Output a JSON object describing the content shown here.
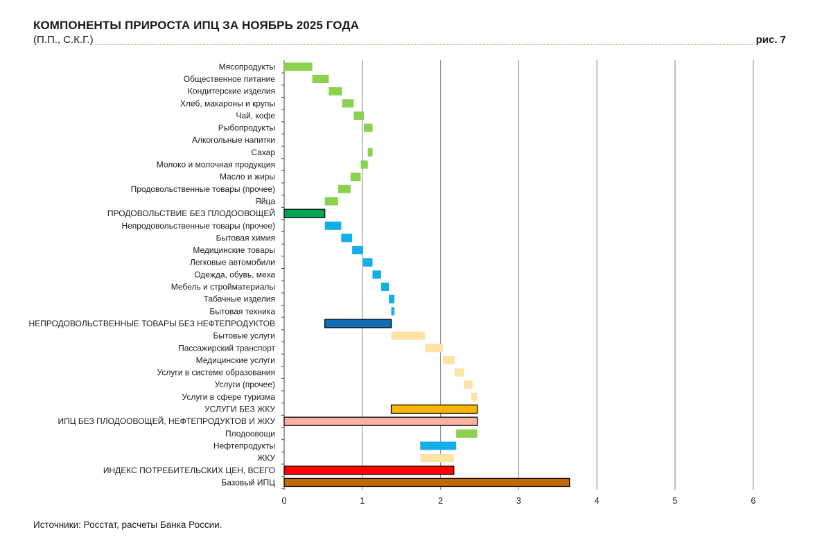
{
  "header": {
    "title": "КОМПОНЕНТЫ ПРИРОСТА ИПЦ ЗА НОЯБРЬ 2025 ГОДА",
    "subtitle": "(П.П., С.К.Г.)",
    "figure_label": "рис. 7"
  },
  "footer": {
    "source": "Источники: Росстат, расчеты Банка России."
  },
  "colors": {
    "food": "#8dd04f",
    "food_total": "#00a651",
    "nonfood": "#12aee8",
    "nonfood_total": "#0f6cb5",
    "services": "#fde3a6",
    "services_total": "#f7b500",
    "core_ex": "#f9b1a3",
    "cpi_total": "#ff0000",
    "base_cpi": "#c06a0a",
    "grid": "#808080"
  },
  "chart_data": {
    "type": "waterfall",
    "title": "КОМПОНЕНТЫ ПРИРОСТА ИПЦ ЗА НОЯБРЬ 2025 ГОДА",
    "units": "п.п., с.к.г.",
    "xlim": [
      0,
      6
    ],
    "xticks": [
      0,
      1,
      2,
      3,
      4,
      5,
      6
    ],
    "grid": true,
    "bars": [
      {
        "label": "Мясопродукты",
        "start": 0.0,
        "end": 0.36,
        "color": "food",
        "outlined": false
      },
      {
        "label": "Общественное питание",
        "start": 0.36,
        "end": 0.57,
        "color": "food",
        "outlined": false
      },
      {
        "label": "Кондитерские изделия",
        "start": 0.57,
        "end": 0.74,
        "color": "food",
        "outlined": false
      },
      {
        "label": "Хлеб, макароны и крупы",
        "start": 0.74,
        "end": 0.89,
        "color": "food",
        "outlined": false
      },
      {
        "label": "Чай, кофе",
        "start": 0.89,
        "end": 1.02,
        "color": "food",
        "outlined": false
      },
      {
        "label": "Рыбопродукты",
        "start": 1.02,
        "end": 1.13,
        "color": "food",
        "outlined": false
      },
      {
        "label": "Алкогольные напитки",
        "start": 1.13,
        "end": 1.13,
        "color": "food",
        "outlined": false
      },
      {
        "label": "Сахар",
        "start": 1.07,
        "end": 1.13,
        "color": "food",
        "outlined": false
      },
      {
        "label": "Молоко и молочная продукция",
        "start": 0.98,
        "end": 1.07,
        "color": "food",
        "outlined": false
      },
      {
        "label": "Масло и жиры",
        "start": 0.85,
        "end": 0.98,
        "color": "food",
        "outlined": false
      },
      {
        "label": "Продовольственные товары (прочее)",
        "start": 0.69,
        "end": 0.85,
        "color": "food",
        "outlined": false
      },
      {
        "label": "Яйца",
        "start": 0.52,
        "end": 0.69,
        "color": "food",
        "outlined": false
      },
      {
        "label": "ПРОДОВОЛЬСТВИЕ БЕЗ ПЛОДООВОЩЕЙ",
        "start": 0.0,
        "end": 0.52,
        "color": "food_total",
        "outlined": true
      },
      {
        "label": "Непродовольственные товары (прочее)",
        "start": 0.52,
        "end": 0.73,
        "color": "nonfood",
        "outlined": false
      },
      {
        "label": "Бытовая химия",
        "start": 0.73,
        "end": 0.87,
        "color": "nonfood",
        "outlined": false
      },
      {
        "label": "Медицинские товары",
        "start": 0.87,
        "end": 1.01,
        "color": "nonfood",
        "outlined": false
      },
      {
        "label": "Легковые автомобили",
        "start": 1.01,
        "end": 1.13,
        "color": "nonfood",
        "outlined": false
      },
      {
        "label": "Одежда, обувь, меха",
        "start": 1.13,
        "end": 1.24,
        "color": "nonfood",
        "outlined": false
      },
      {
        "label": "Мебель и стройматериалы",
        "start": 1.24,
        "end": 1.34,
        "color": "nonfood",
        "outlined": false
      },
      {
        "label": "Табачные изделия",
        "start": 1.34,
        "end": 1.41,
        "color": "nonfood",
        "outlined": false
      },
      {
        "label": "Бытовая техника",
        "start": 1.37,
        "end": 1.41,
        "color": "nonfood",
        "outlined": false
      },
      {
        "label": "НЕПРОДОВОЛЬСТВЕННЫЕ ТОВАРЫ БЕЗ НЕФТЕПРОДУКТОВ",
        "start": 0.52,
        "end": 1.37,
        "color": "nonfood_total",
        "outlined": true
      },
      {
        "label": "Бытовые услуги",
        "start": 1.37,
        "end": 1.8,
        "color": "services",
        "outlined": false
      },
      {
        "label": "Пассажирский транспорт",
        "start": 1.8,
        "end": 2.03,
        "color": "services",
        "outlined": false
      },
      {
        "label": "Медицинские услуги",
        "start": 2.03,
        "end": 2.18,
        "color": "services",
        "outlined": false
      },
      {
        "label": "Услуги в системе образования",
        "start": 2.18,
        "end": 2.3,
        "color": "services",
        "outlined": false
      },
      {
        "label": "Услуги (прочее)",
        "start": 2.3,
        "end": 2.41,
        "color": "services",
        "outlined": false
      },
      {
        "label": "Услуги в сфере туризма",
        "start": 2.39,
        "end": 2.47,
        "color": "services",
        "outlined": false
      },
      {
        "label": "УСЛУГИ БЕЗ ЖКУ",
        "start": 1.37,
        "end": 2.47,
        "color": "services_total",
        "outlined": true
      },
      {
        "label": "ИПЦ БЕЗ ПЛОДООВОЩЕЙ, НЕФТЕПРОДУКТОВ И ЖКУ",
        "start": 0.0,
        "end": 2.47,
        "color": "core_ex",
        "outlined": true
      },
      {
        "label": "Плодоовощи",
        "start": 2.2,
        "end": 2.47,
        "color": "food",
        "outlined": false
      },
      {
        "label": "Нефтепродукты",
        "start": 1.74,
        "end": 2.2,
        "color": "nonfood",
        "outlined": false
      },
      {
        "label": "ЖКУ",
        "start": 1.74,
        "end": 2.17,
        "color": "services",
        "outlined": false
      },
      {
        "label": "ИНДЕКС ПОТРЕБИТЕЛЬСКИХ ЦЕН, ВСЕГО",
        "start": 0.0,
        "end": 2.17,
        "color": "cpi_total",
        "outlined": true
      },
      {
        "label": "Базовый ИПЦ",
        "start": 0.0,
        "end": 3.65,
        "color": "base_cpi",
        "outlined": true
      }
    ]
  }
}
